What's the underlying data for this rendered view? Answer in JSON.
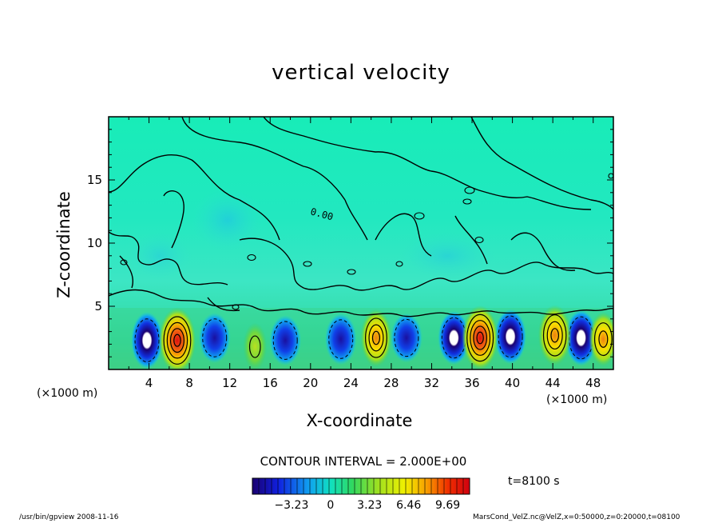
{
  "chart_data": {
    "type": "heatmap",
    "title": "vertical velocity",
    "xlabel": "X-coordinate",
    "ylabel": "Z-coordinate",
    "x_unit": "(×1000 m)",
    "x_ticks": [
      4,
      8,
      12,
      16,
      20,
      24,
      28,
      32,
      36,
      40,
      44,
      48
    ],
    "y_ticks": [
      5,
      10,
      15
    ],
    "xlim": [
      0,
      50
    ],
    "ylim": [
      0,
      20
    ],
    "contour_interval": "CONTOUR INTERVAL = 2.000E+00",
    "contour_label": "0.00",
    "time": "t=8100 s",
    "colorbar": {
      "ticks": [
        "−3.23",
        "0",
        "3.23",
        "6.46",
        "9.69"
      ],
      "tick_values": [
        -3.23,
        0,
        3.23,
        6.46,
        9.69
      ],
      "range": [
        -6.46,
        11.5
      ]
    },
    "updrafts": [
      {
        "x": 6.8,
        "z": 2.3,
        "w": 9.5
      },
      {
        "x": 26.5,
        "z": 2.5,
        "w": 6.5
      },
      {
        "x": 36.8,
        "z": 2.5,
        "w": 9.0
      },
      {
        "x": 44.2,
        "z": 2.7,
        "w": 7.5
      },
      {
        "x": 49.0,
        "z": 2.4,
        "w": 5.0
      },
      {
        "x": 14.5,
        "z": 1.8,
        "w": 2.5
      }
    ],
    "downdrafts": [
      {
        "x": 3.8,
        "z": 2.3,
        "w": -7.0
      },
      {
        "x": 10.5,
        "z": 2.5,
        "w": -4.0
      },
      {
        "x": 17.5,
        "z": 2.3,
        "w": -4.0
      },
      {
        "x": 23.0,
        "z": 2.4,
        "w": -4.5
      },
      {
        "x": 29.5,
        "z": 2.5,
        "w": -3.5
      },
      {
        "x": 34.2,
        "z": 2.5,
        "w": -5.5
      },
      {
        "x": 39.8,
        "z": 2.6,
        "w": -6.0
      },
      {
        "x": 46.8,
        "z": 2.5,
        "w": -6.5
      }
    ]
  },
  "footer": {
    "left": "/usr/bin/gpview   2008-11-16",
    "right": "MarsCond_VelZ.nc@VelZ,x=0:50000,z=0:20000,t=08100"
  }
}
